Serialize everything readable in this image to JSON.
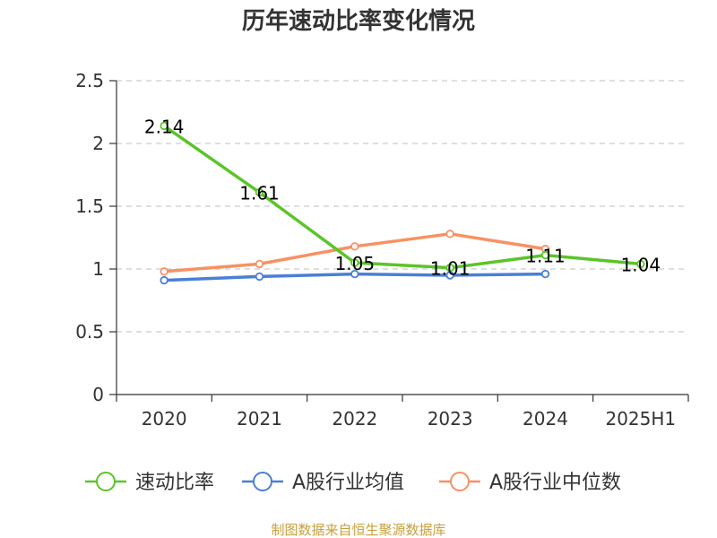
{
  "chart_data": {
    "type": "line",
    "title": "历年速动比率变化情况",
    "categories": [
      "2020",
      "2021",
      "2022",
      "2023",
      "2024",
      "2025H1"
    ],
    "yticks": [
      "0",
      "0.5",
      "1",
      "1.5",
      "2",
      "2.5"
    ],
    "ylim": [
      0,
      2.5
    ],
    "grid": true,
    "legend_position": "bottom",
    "series": [
      {
        "name": "速动比率",
        "color": "#5bc42a",
        "values": [
          2.14,
          1.61,
          1.05,
          1.01,
          1.11,
          1.04
        ],
        "labels": [
          "2.14",
          "1.61",
          "1.05",
          "1.01",
          "1.11",
          "1.04"
        ]
      },
      {
        "name": "A股行业均值",
        "color": "#4a7fd6",
        "values": [
          0.91,
          0.94,
          0.96,
          0.95,
          0.96,
          null
        ]
      },
      {
        "name": "A股行业中位数",
        "color": "#f79163",
        "values": [
          0.98,
          1.04,
          1.18,
          1.28,
          1.16,
          null
        ]
      }
    ]
  },
  "source": {
    "text": "制图数据来自恒生聚源数据库",
    "color": "#c8a03c"
  }
}
